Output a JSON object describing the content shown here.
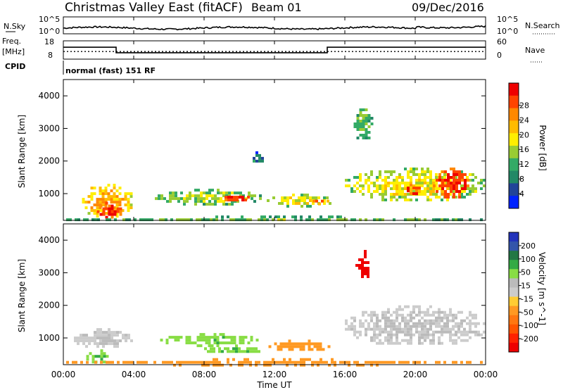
{
  "header": {
    "station": "Christmas Valley East (fitACF)",
    "beam": "Beam 01",
    "date": "09/Dec/2016"
  },
  "strip": {
    "nsky_label": "N.Sky",
    "nsky_ticks": [
      "10^5",
      "10^0"
    ],
    "nsearch_label": "N.Search",
    "nsearch_ticks": [
      "10^5",
      "10^0"
    ],
    "freq_label_1": "Freq.",
    "freq_label_2": "[MHz]",
    "freq_ticks": [
      "18",
      "8"
    ],
    "nave_label": "Nave",
    "nave_ticks": [
      "60",
      "0"
    ],
    "cpid_label": "CPID",
    "cpid_value": "normal (fast) 151 RF"
  },
  "power_colorbar": {
    "title": "Power [dB]",
    "ticks": [
      "28",
      "24",
      "20",
      "16",
      "12",
      "8",
      "4"
    ],
    "colors": [
      "#ee0000",
      "#ff4400",
      "#ff8800",
      "#ffbb00",
      "#ffee00",
      "#99cc33",
      "#33aa66",
      "#228866",
      "#224499",
      "#0022ff"
    ]
  },
  "velocity_colorbar": {
    "title": "Velocity [m s^-1]",
    "ticks": [
      "200",
      "100",
      "50",
      "15",
      "-15",
      "-50",
      "-100",
      "-200"
    ],
    "colors": [
      "#2233bb",
      "#3355aa",
      "#227744",
      "#33aa44",
      "#88dd44",
      "#bbbbbb",
      "#cccccc",
      "#ffcc33",
      "#ff9922",
      "#ff7711",
      "#ff5500",
      "#ff2200",
      "#ee0000"
    ]
  },
  "axes": {
    "ylabel": "Slant Range [km]",
    "xlabel": "Time UT",
    "yticks": [
      "4000",
      "3000",
      "2000",
      "1000"
    ],
    "xticks": [
      "00:00",
      "04:00",
      "08:00",
      "12:00",
      "16:00",
      "20:00",
      "00:00"
    ]
  },
  "chart_data": {
    "type": "heatmap",
    "x_range_hours": [
      0,
      24
    ],
    "y_range_km": [
      180,
      4500
    ],
    "frequency_mhz": {
      "segments": [
        {
          "start": 0,
          "end": 3.0,
          "value": 14.5
        },
        {
          "start": 3.0,
          "end": 15.0,
          "value": 11.5
        },
        {
          "start": 15.0,
          "end": 24,
          "value": 14.5
        }
      ]
    },
    "nave_level": 25,
    "power_blobs": [
      {
        "t0": 0.9,
        "t1": 3.9,
        "r0": 300,
        "r1": 1300,
        "dB": 20
      },
      {
        "t0": 1.9,
        "t1": 3.3,
        "r0": 250,
        "r1": 750,
        "dB": 27
      },
      {
        "t0": 5.2,
        "t1": 11.2,
        "r0": 700,
        "r1": 1150,
        "dB": 14
      },
      {
        "t0": 9.0,
        "t1": 10.6,
        "r0": 780,
        "r1": 1020,
        "dB": 27
      },
      {
        "t0": 11.4,
        "t1": 15.3,
        "r0": 650,
        "r1": 1000,
        "dB": 16
      },
      {
        "t0": 14.0,
        "t1": 15.0,
        "r0": 720,
        "r1": 900,
        "dB": 22
      },
      {
        "t0": 16.0,
        "t1": 24.0,
        "r0": 800,
        "r1": 1800,
        "dB": 16
      },
      {
        "t0": 19.2,
        "t1": 20.2,
        "r0": 1000,
        "r1": 1300,
        "dB": 27
      },
      {
        "t0": 21.0,
        "t1": 23.0,
        "r0": 900,
        "r1": 1800,
        "dB": 27
      },
      {
        "t0": 16.5,
        "t1": 17.5,
        "r0": 2600,
        "r1": 3700,
        "dB": 12
      },
      {
        "t0": 10.6,
        "t1": 11.3,
        "r0": 1900,
        "r1": 2300,
        "dB": 8
      },
      {
        "t0": 0.0,
        "t1": 24.0,
        "r0": 200,
        "r1": 330,
        "dB": 12
      }
    ],
    "velocity_blobs": [
      {
        "t0": 0.6,
        "t1": 4.0,
        "r0": 700,
        "r1": 1300,
        "v": 0
      },
      {
        "t0": 1.3,
        "t1": 2.8,
        "r0": 250,
        "r1": 650,
        "v": 30
      },
      {
        "t0": 5.5,
        "t1": 11.0,
        "r0": 800,
        "r1": 1150,
        "v": 30
      },
      {
        "t0": 8.0,
        "t1": 11.2,
        "r0": 550,
        "r1": 800,
        "v": 30
      },
      {
        "t0": 11.5,
        "t1": 15.2,
        "r0": 650,
        "r1": 950,
        "v": -40
      },
      {
        "t0": 16.0,
        "t1": 24.0,
        "r0": 800,
        "r1": 2000,
        "v": 0
      },
      {
        "t0": 16.6,
        "t1": 17.4,
        "r0": 2800,
        "r1": 3700,
        "v": -200
      },
      {
        "t0": 0.0,
        "t1": 24.0,
        "r0": 200,
        "r1": 380,
        "v": -40
      }
    ]
  }
}
